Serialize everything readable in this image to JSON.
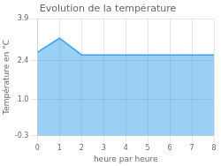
{
  "chart_data": {
    "type": "area",
    "title": "Evolution de la température",
    "xlabel": "heure par heure",
    "ylabel": "Température en °C",
    "x": [
      0,
      1,
      2,
      3,
      4,
      5,
      6,
      7,
      8
    ],
    "values": [
      2.7,
      3.2,
      2.6,
      2.6,
      2.6,
      2.6,
      2.6,
      2.6,
      2.6
    ],
    "xlim": [
      0,
      8
    ],
    "ylim": [
      -0.3,
      3.9
    ],
    "xticks": [
      0,
      1,
      2,
      3,
      4,
      5,
      6,
      7,
      8
    ],
    "yticks": [
      -0.3,
      {
        "value": 1.0,
        "label": "1.0"
      },
      2.4,
      3.9
    ],
    "grid": true
  }
}
